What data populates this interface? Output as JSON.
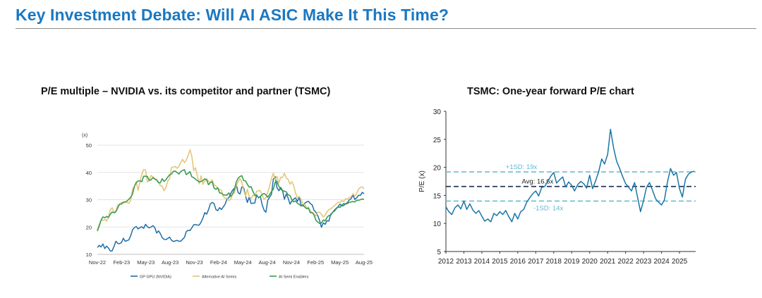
{
  "page": {
    "title": "Key Investment Debate: Will AI ASIC Make It This Time?"
  },
  "chart_data": [
    {
      "type": "line",
      "title": "P/E multiple – NVIDIA vs. its competitor and partner (TSMC)",
      "ylabel": "(x)",
      "xlabel": "",
      "ylim": [
        10,
        50
      ],
      "yticks": [
        10,
        20,
        30,
        40,
        50
      ],
      "grid": true,
      "legend_position": "bottom",
      "x_tick_labels": [
        "Nov-22",
        "Feb-23",
        "May-23",
        "Aug-23",
        "Nov-23",
        "Feb-24",
        "May-24",
        "Aug-24",
        "Nov-24",
        "Feb-25",
        "May-25",
        "Aug-25"
      ],
      "x": [
        0,
        1,
        2,
        3,
        4,
        5,
        6,
        7,
        8,
        9,
        10,
        11,
        12,
        13,
        14,
        15,
        16,
        17,
        18,
        19,
        20,
        21,
        22,
        23,
        24,
        25,
        26,
        27,
        28,
        29,
        30,
        31,
        32,
        33,
        34,
        35,
        36,
        37,
        38,
        39,
        40,
        41,
        42,
        43,
        44,
        45,
        46,
        47,
        48,
        49,
        50,
        51,
        52,
        53,
        54,
        55,
        56,
        57,
        58,
        59,
        60,
        61,
        62,
        63,
        64,
        65,
        66,
        67,
        68,
        69,
        70,
        71,
        72,
        73,
        74,
        75,
        76,
        77,
        78,
        79,
        80,
        81,
        82,
        83,
        84,
        85,
        86,
        87,
        88,
        89,
        90,
        91,
        92,
        93,
        94,
        95,
        96,
        97,
        98,
        99,
        100,
        101,
        102,
        103,
        104,
        105,
        106,
        107,
        108,
        109,
        110,
        111,
        112,
        113,
        114,
        115,
        116,
        117,
        118,
        119,
        120,
        121,
        122,
        123,
        124,
        125,
        126,
        127,
        128,
        129,
        130,
        131,
        132,
        133,
        134,
        135,
        136,
        137,
        138,
        139,
        140,
        141,
        142,
        143,
        144
      ],
      "series": [
        {
          "name": "GP GPU (NVIDIA)",
          "color": "#1f6ea8",
          "values": [
            12.5,
            13.3,
            12.7,
            13.8,
            12.1,
            13,
            12.3,
            11.2,
            11.3,
            12.9,
            14.8,
            14,
            13.9,
            14.3,
            15.9,
            14.8,
            15,
            15.3,
            16.8,
            19,
            19.8,
            20.2,
            19.3,
            19.8,
            20.1,
            19.5,
            21,
            20.1,
            19.7,
            20,
            20.5,
            19.8,
            17.8,
            18.6,
            17.6,
            16.1,
            15.5,
            15.4,
            15.8,
            16.3,
            15.2,
            14.7,
            14.9,
            15.1,
            14.8,
            14.8,
            15.5,
            16.2,
            18.3,
            18.8,
            18.7,
            19.7,
            20.8,
            20.9,
            20.7,
            20.7,
            21.8,
            23.3,
            25.3,
            24.7,
            26.3,
            28.5,
            29,
            28.6,
            26.4,
            26,
            27.1,
            26.4,
            27.4,
            28.4,
            30.3,
            30.7,
            32.3,
            33.5,
            34.2,
            35.6,
            32.6,
            32.1,
            34.7,
            34.4,
            31.4,
            29,
            31,
            28.6,
            28.7,
            28.8,
            31.8,
            30.7,
            31.2,
            28.1,
            26.2,
            25.4,
            29.8,
            30.9,
            32,
            37.5,
            38.5,
            34.4,
            33.3,
            34.5,
            33.3,
            30.2,
            32.1,
            30.6,
            28.4,
            29.5,
            30.2,
            30.7,
            29.4,
            30.9,
            28.1,
            27.7,
            28.7,
            29.2,
            29.4,
            28.6,
            28.1,
            26.1,
            25.4,
            24.2,
            22.3,
            19.9,
            21.5,
            21,
            22.3,
            22.2,
            24.7,
            25.3,
            26.2,
            26.9,
            27.5,
            28.4,
            27.7,
            27.9,
            28.5,
            28.9,
            29.9,
            30.4,
            31.7,
            30.1,
            30.7,
            31.6,
            31.6,
            32.7,
            32.2
          ]
        },
        {
          "name": "Alternative AI Semis",
          "color": "#e3c77a",
          "values": [
            19,
            20.9,
            22.6,
            22.4,
            22.8,
            22.2,
            23.6,
            26.4,
            27,
            25.4,
            25.9,
            28.1,
            28.2,
            29,
            28.8,
            29.1,
            29,
            28.7,
            29.8,
            33.9,
            34.9,
            36.5,
            33.4,
            36.6,
            39.3,
            41.1,
            40.9,
            36.5,
            37,
            38.9,
            38.3,
            37.7,
            37.4,
            36.6,
            35.1,
            35,
            33.3,
            34.5,
            36.8,
            37.7,
            41.7,
            42,
            42.2,
            41.5,
            42.2,
            43.6,
            44.8,
            43.6,
            44.5,
            46.2,
            48.3,
            45.9,
            40.7,
            41.7,
            38.6,
            35.8,
            38.8,
            35.6,
            36.9,
            37.6,
            36.8,
            36.3,
            37.3,
            35.4,
            35.1,
            34.2,
            33.7,
            33.5,
            31.2,
            30.5,
            30.6,
            29.7,
            30.1,
            32.1,
            32.5,
            35.1,
            36.5,
            37.7,
            36.4,
            33.4,
            31.2,
            33.8,
            31.1,
            30.4,
            31.7,
            31.3,
            33.1,
            33.3,
            33.3,
            31.5,
            30.2,
            30.7,
            32.8,
            35,
            37.8,
            39.7,
            37.4,
            38.5,
            36.2,
            38.2,
            38.2,
            39.7,
            37.9,
            37.4,
            35.7,
            36.6,
            35.2,
            32.5,
            30.7,
            31.2,
            30.1,
            28.4,
            28.2,
            27,
            27.3,
            25.7,
            25.4,
            24.8,
            24.1,
            25.4,
            25.4,
            24.7,
            23.7,
            24.4,
            25.6,
            26.4,
            26.6,
            27.3,
            27.8,
            28.5,
            29,
            29.1,
            29.7,
            29.3,
            30.4,
            30.1,
            30.8,
            31.1,
            32.2,
            31.3,
            32.3,
            33.9,
            34.5,
            34.7,
            34
          ]
        },
        {
          "name": "AI Semi Enablers",
          "color": "#3f9b53",
          "values": [
            18.5,
            20.4,
            22.5,
            23.7,
            23.4,
            23.9,
            23.5,
            24.7,
            25.5,
            25.2,
            25.6,
            27,
            28.4,
            28.4,
            29.1,
            29.2,
            29.5,
            30.2,
            30.9,
            32.1,
            34.9,
            36.3,
            36.9,
            36.9,
            36.6,
            38.6,
            38.6,
            38.5,
            37.1,
            37.3,
            38.1,
            37.6,
            37.2,
            36.2,
            36.2,
            37.7,
            36.7,
            37.3,
            38.3,
            39.1,
            39.4,
            40.4,
            40.5,
            40,
            39.4,
            40.3,
            40.7,
            41,
            39.2,
            39.7,
            40.3,
            38.4,
            38.1,
            37.5,
            37,
            36.5,
            36.7,
            37,
            37.7,
            37.3,
            35.5,
            36.3,
            36.6,
            34.3,
            33.8,
            34.4,
            32.5,
            32.4,
            31.8,
            31.7,
            31.7,
            32.5,
            31.2,
            32.1,
            33.8,
            36.5,
            37.9,
            38.5,
            38.8,
            37,
            36.9,
            35.6,
            34.6,
            34.8,
            33,
            31.7,
            31.6,
            30.7,
            31.2,
            31.9,
            32.3,
            31.8,
            30.9,
            31.9,
            33,
            33.8,
            36.4,
            36.7,
            34.9,
            33.8,
            33.4,
            33.1,
            32.9,
            31.8,
            31.5,
            30,
            29.2,
            29.6,
            28.7,
            28.3,
            27.7,
            28.1,
            27.3,
            26.7,
            26.9,
            25.2,
            25.3,
            24.4,
            22.5,
            21.8,
            21.3,
            21.5,
            22.6,
            22.2,
            23.6,
            24.2,
            24.3,
            25.4,
            25.8,
            26.7,
            27.3,
            27.2,
            28.1,
            28.6,
            28.4,
            28.6,
            29,
            29.2,
            29.3,
            29.2,
            29.8,
            29.8,
            30,
            30.3,
            30.1
          ]
        }
      ]
    },
    {
      "type": "line",
      "title": "TSMC: One-year forward P/E chart",
      "ylabel": "P/E (x)",
      "xlabel": "",
      "ylim": [
        5,
        30
      ],
      "yticks": [
        5,
        10,
        15,
        20,
        25,
        30
      ],
      "xlim": [
        2012,
        2025.9
      ],
      "x_tick_labels": [
        "2012",
        "2013",
        "2014",
        "2015",
        "2016",
        "2017",
        "2018",
        "2019",
        "2020",
        "2021",
        "2022",
        "2023",
        "2024",
        "2025"
      ],
      "grid": false,
      "reference_lines": [
        {
          "label": "+1SD: 19x",
          "value": 19.2,
          "color": "#63b7d1",
          "style": "dashed"
        },
        {
          "label": "Avg: 16.6x",
          "value": 16.6,
          "color": "#1a2a4f",
          "style": "dashed"
        },
        {
          "label": "-1SD: 14x",
          "value": 14,
          "color": "#63b7d1",
          "style": "dashed"
        }
      ],
      "series": [
        {
          "name": "TSMC one-year forward P/E",
          "color": "#1b76a6",
          "x": [
            2012,
            2012.16,
            2012.33,
            2012.5,
            2012.67,
            2012.83,
            2013,
            2013.16,
            2013.33,
            2013.5,
            2013.67,
            2013.83,
            2014,
            2014.16,
            2014.33,
            2014.5,
            2014.67,
            2014.83,
            2015,
            2015.16,
            2015.33,
            2015.5,
            2015.67,
            2015.83,
            2016,
            2016.16,
            2016.33,
            2016.5,
            2016.67,
            2016.83,
            2017,
            2017.16,
            2017.33,
            2017.5,
            2017.67,
            2017.83,
            2018,
            2018.16,
            2018.33,
            2018.5,
            2018.67,
            2018.83,
            2019,
            2019.16,
            2019.33,
            2019.5,
            2019.67,
            2019.83,
            2020,
            2020.16,
            2020.33,
            2020.5,
            2020.67,
            2020.83,
            2021,
            2021.16,
            2021.33,
            2021.5,
            2021.67,
            2021.83,
            2022,
            2022.16,
            2022.33,
            2022.5,
            2022.67,
            2022.83,
            2023,
            2023.16,
            2023.33,
            2023.5,
            2023.67,
            2023.83,
            2024,
            2024.16,
            2024.33,
            2024.5,
            2024.67,
            2024.83,
            2025,
            2025.16,
            2025.33,
            2025.5,
            2025.67,
            2025.83
          ],
          "values": [
            13,
            12.1,
            11.6,
            12.8,
            13.3,
            12.6,
            14,
            12.5,
            13.5,
            12.4,
            11.8,
            12.3,
            11.3,
            10.4,
            10.8,
            10.3,
            11.8,
            11.4,
            12.1,
            11.6,
            12.3,
            11.2,
            10.3,
            11.8,
            10.8,
            12.1,
            12.5,
            13.8,
            14.6,
            15.3,
            15.8,
            14.9,
            16.4,
            16.6,
            17.5,
            18.4,
            19.1,
            17.2,
            17.8,
            18.3,
            16.5,
            17.4,
            16.8,
            15.8,
            16.9,
            17.5,
            17.1,
            16.3,
            18.6,
            16.2,
            17.6,
            19.2,
            21.5,
            20.6,
            22.3,
            26.8,
            23.5,
            21.1,
            19.8,
            18.4,
            17.1,
            16.5,
            15.8,
            17.3,
            14.6,
            12.1,
            14.1,
            16.4,
            17.3,
            15.9,
            14.4,
            13.8,
            13.3,
            14.2,
            17.4,
            19.8,
            18.6,
            19.1,
            16.2,
            14.7,
            17.9,
            18.8,
            19.2,
            19.3
          ]
        }
      ]
    }
  ]
}
